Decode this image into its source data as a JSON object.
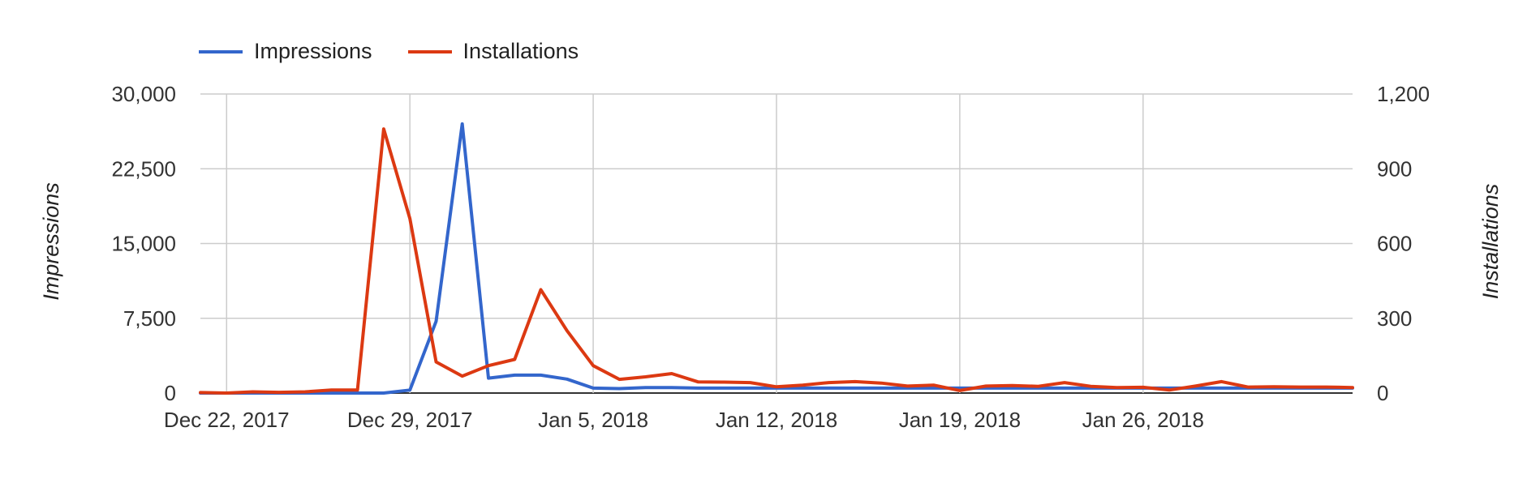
{
  "legend": [
    {
      "label": "Impressions",
      "color": "#3366cc"
    },
    {
      "label": "Installations",
      "color": "#dc3912"
    }
  ],
  "chart_data": {
    "type": "line",
    "title": "",
    "y_left_label": "Impressions",
    "y_right_label": "Installations",
    "y_left_lim": [
      0,
      30000
    ],
    "y_right_lim": [
      0,
      1200
    ],
    "y_left_ticks": [
      "0",
      "7,500",
      "15,000",
      "22,500",
      "30,000"
    ],
    "y_right_ticks": [
      "0",
      "300",
      "600",
      "900",
      "1,200"
    ],
    "x_start": "Dec 21, 2017",
    "x_end": "Feb 3, 2018",
    "x_ticks": [
      "Dec 22, 2017",
      "Dec 29, 2017",
      "Jan 5, 2018",
      "Jan 12, 2018",
      "Jan 19, 2018",
      "Jan 26, 2018"
    ],
    "grid": true,
    "legend_position": "top-left",
    "x": [
      "Dec 21, 2017",
      "Dec 22, 2017",
      "Dec 23, 2017",
      "Dec 24, 2017",
      "Dec 25, 2017",
      "Dec 26, 2017",
      "Dec 27, 2017",
      "Dec 28, 2017",
      "Dec 29, 2017",
      "Dec 30, 2017",
      "Dec 31, 2017",
      "Jan 1, 2018",
      "Jan 2, 2018",
      "Jan 3, 2018",
      "Jan 4, 2018",
      "Jan 5, 2018",
      "Jan 6, 2018",
      "Jan 7, 2018",
      "Jan 8, 2018",
      "Jan 9, 2018",
      "Jan 10, 2018",
      "Jan 11, 2018",
      "Jan 12, 2018",
      "Jan 13, 2018",
      "Jan 14, 2018",
      "Jan 15, 2018",
      "Jan 16, 2018",
      "Jan 17, 2018",
      "Jan 18, 2018",
      "Jan 19, 2018",
      "Jan 20, 2018",
      "Jan 21, 2018",
      "Jan 22, 2018",
      "Jan 23, 2018",
      "Jan 24, 2018",
      "Jan 25, 2018",
      "Jan 26, 2018",
      "Jan 27, 2018",
      "Jan 28, 2018",
      "Jan 29, 2018",
      "Jan 30, 2018",
      "Jan 31, 2018",
      "Feb 1, 2018",
      "Feb 2, 2018",
      "Feb 3, 2018"
    ],
    "series": [
      {
        "name": "Impressions",
        "axis": "left",
        "color": "#3366cc",
        "values": [
          0,
          0,
          0,
          0,
          0,
          0,
          0,
          0,
          300,
          7200,
          27000,
          1500,
          1800,
          1800,
          1400,
          500,
          450,
          550,
          550,
          500,
          500,
          500,
          500,
          500,
          500,
          500,
          500,
          500,
          500,
          500,
          500,
          500,
          500,
          500,
          500,
          500,
          500,
          500,
          500,
          500,
          500,
          500,
          500,
          500,
          500
        ]
      },
      {
        "name": "Installations",
        "axis": "right",
        "color": "#dc3912",
        "values": [
          2,
          0,
          5,
          3,
          5,
          12,
          12,
          1060,
          700,
          125,
          68,
          110,
          135,
          415,
          250,
          110,
          55,
          65,
          78,
          45,
          44,
          42,
          25,
          32,
          42,
          46,
          40,
          28,
          32,
          10,
          28,
          30,
          27,
          42,
          27,
          22,
          23,
          12,
          28,
          46,
          24,
          25,
          24,
          24,
          22
        ]
      }
    ]
  }
}
